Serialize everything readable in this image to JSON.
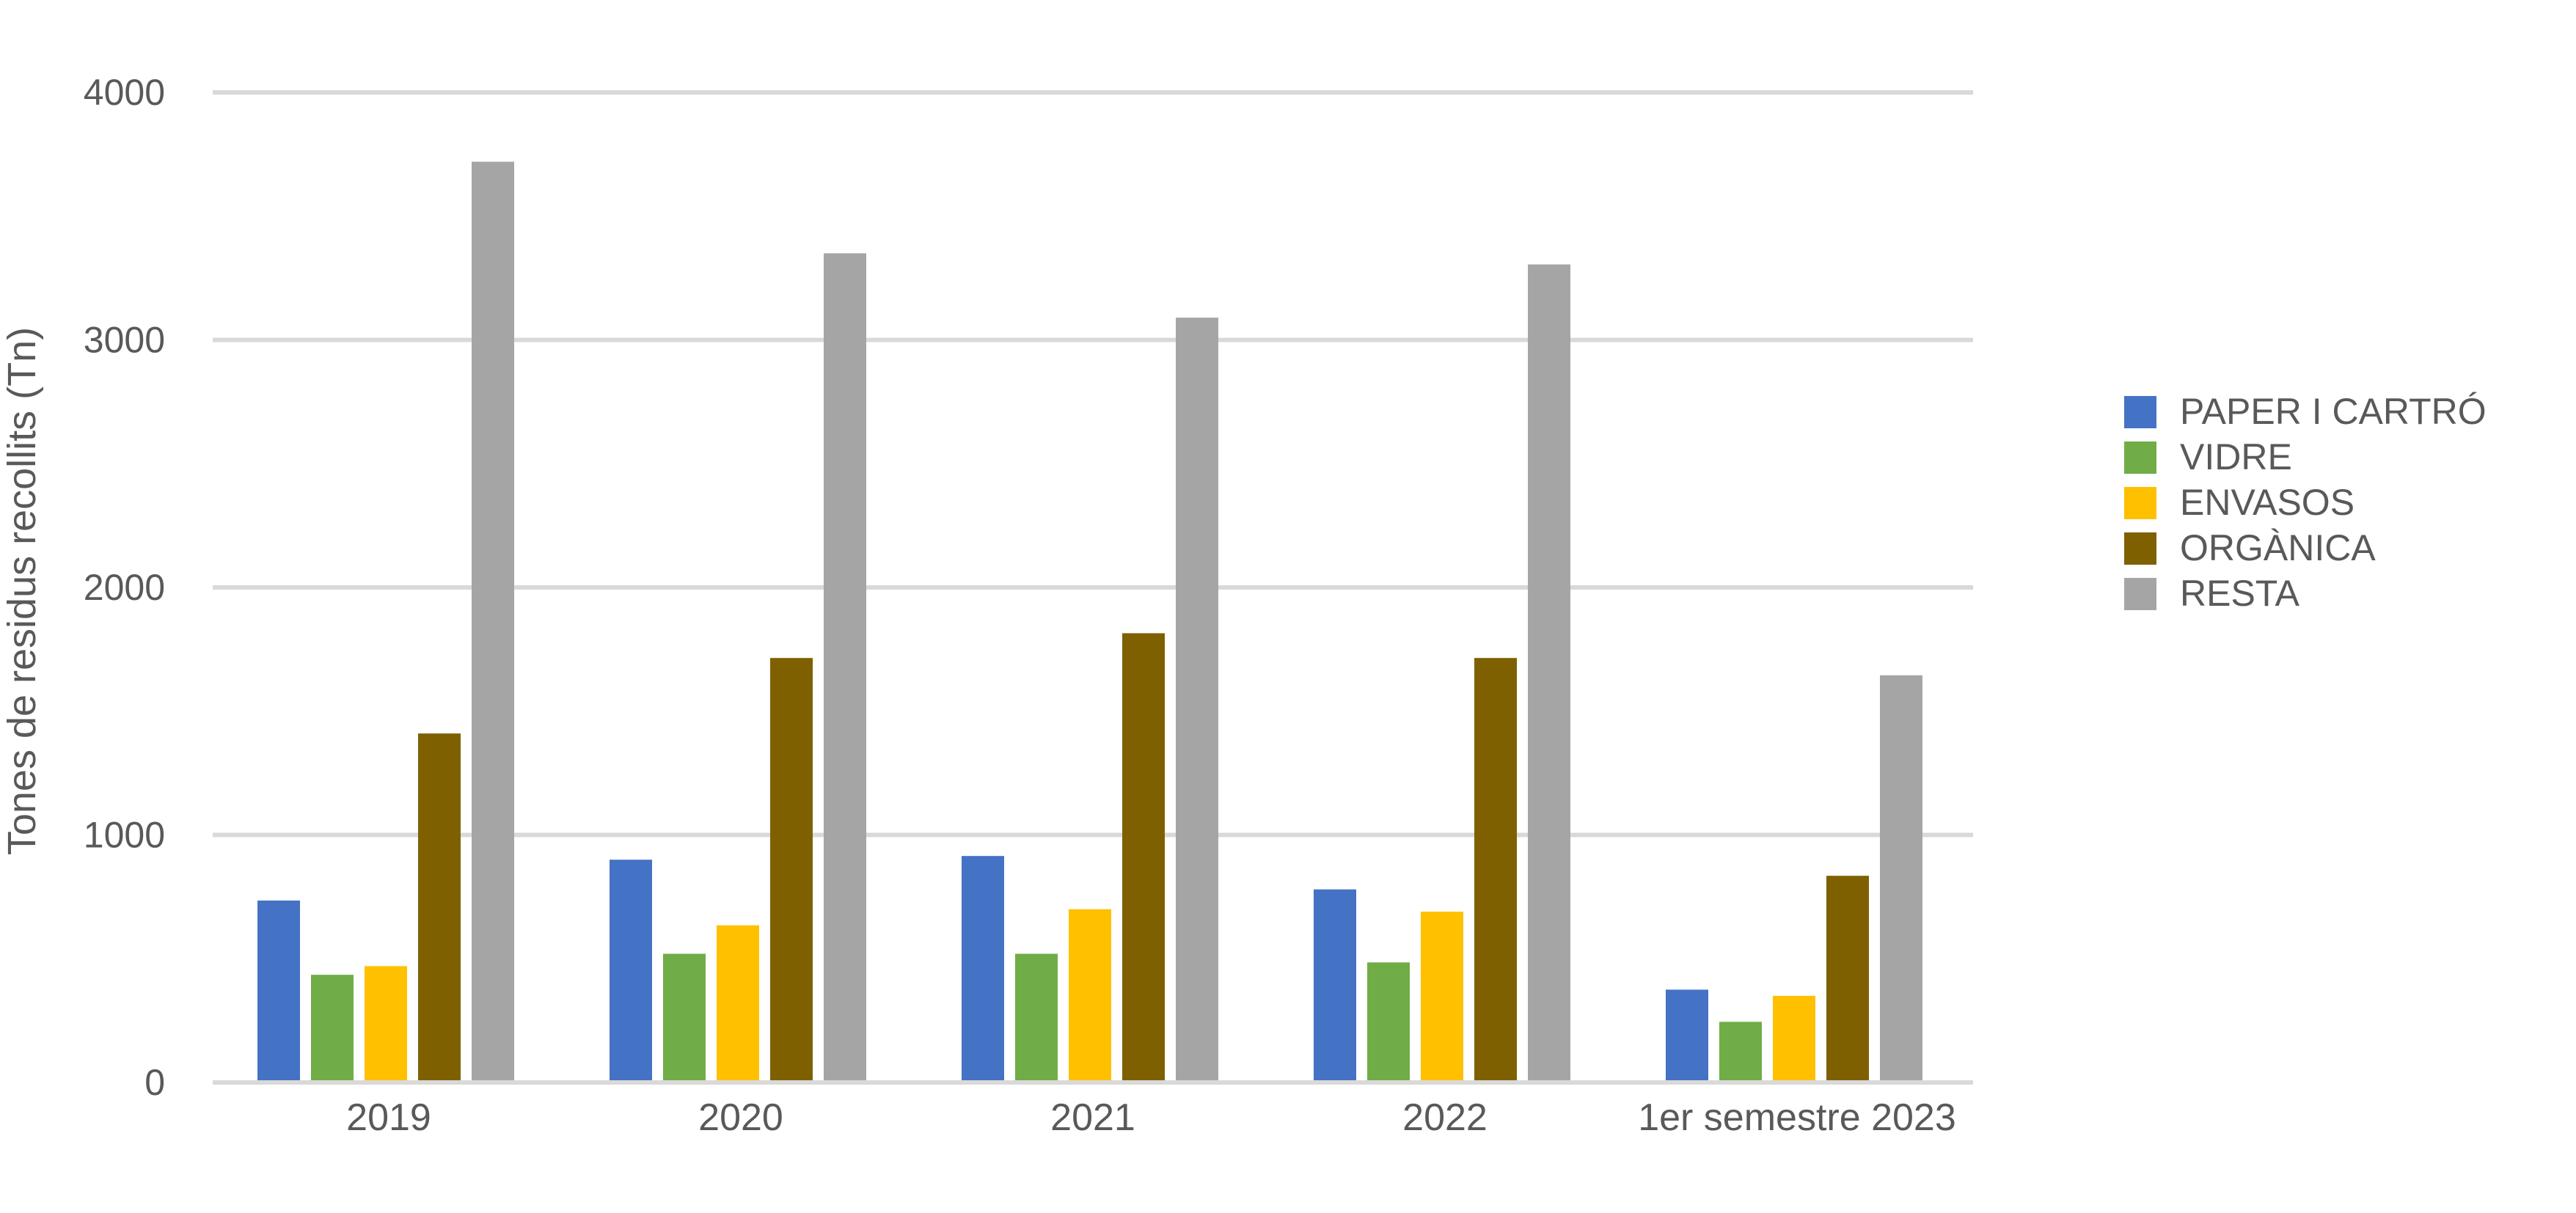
{
  "chart_data": {
    "type": "bar",
    "title": "",
    "xlabel": "",
    "ylabel": "Tones de residus recollits (Tn)",
    "ylim": [
      0,
      4000
    ],
    "yticks": [
      "0",
      "1000",
      "2000",
      "3000",
      "4000"
    ],
    "grid": true,
    "legend_position": "right",
    "categories": [
      "2019",
      "2020",
      "2021",
      "2022",
      "1er semestre 2023"
    ],
    "series": [
      {
        "name": "PAPER I CARTRÓ",
        "color": "#4472C4",
        "values": [
          735,
          900,
          915,
          780,
          375
        ]
      },
      {
        "name": "VIDRE",
        "color": "#70AD47",
        "values": [
          435,
          520,
          520,
          485,
          245
        ]
      },
      {
        "name": "ENVASOS",
        "color": "#FFC000",
        "values": [
          470,
          635,
          700,
          690,
          350
        ]
      },
      {
        "name": "ORGÀNICA",
        "color": "#7F6000",
        "values": [
          1410,
          1715,
          1815,
          1715,
          835
        ]
      },
      {
        "name": "RESTA",
        "color": "#A5A5A5",
        "values": [
          3720,
          3350,
          3090,
          3305,
          1645
        ]
      }
    ]
  }
}
